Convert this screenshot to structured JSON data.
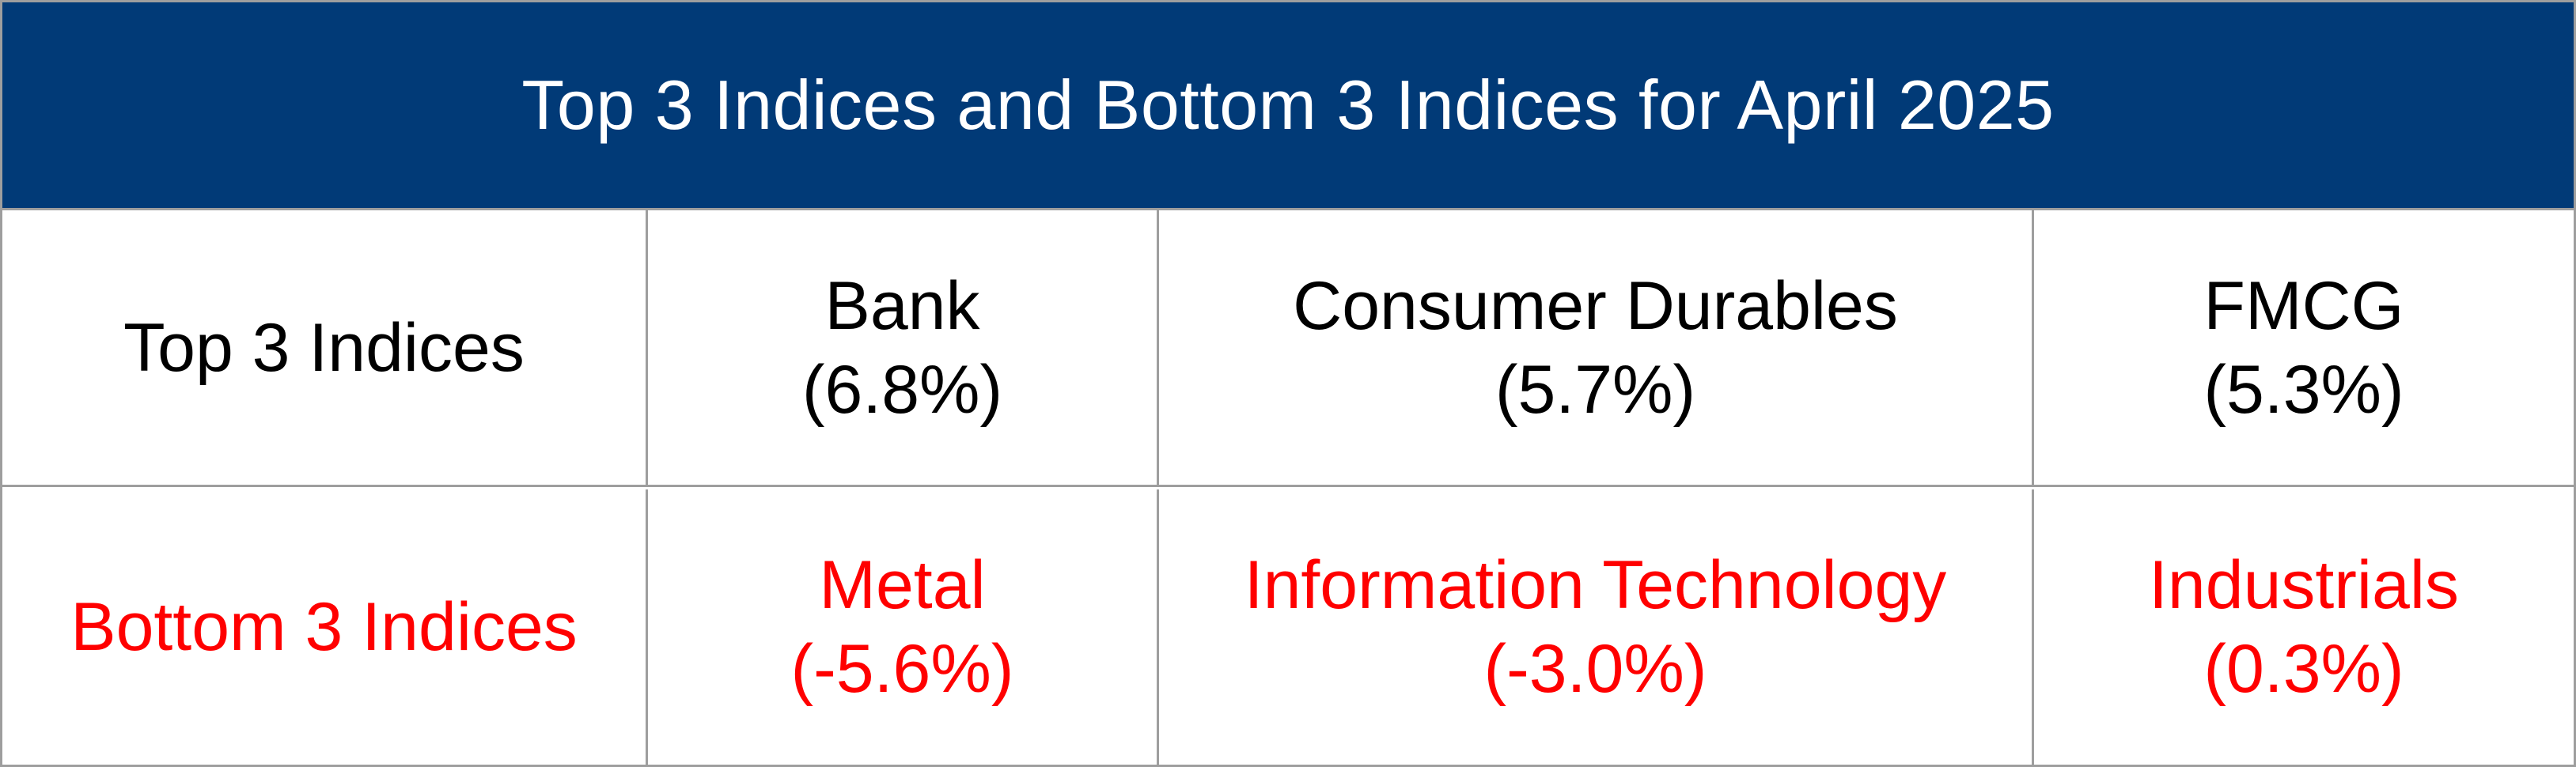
{
  "title": "Top 3 Indices and Bottom 3 Indices for April 2025",
  "colors": {
    "header_bg": "#013a77",
    "header_text": "#ffffff",
    "top_text": "#000000",
    "bottom_text": "#ff0000",
    "border": "#9e9e9e"
  },
  "top": {
    "label": "Top 3 Indices",
    "items": [
      {
        "name": "Bank",
        "value": "(6.8%)"
      },
      {
        "name": "Consumer Durables",
        "value": "(5.7%)"
      },
      {
        "name": "FMCG",
        "value": "(5.3%)"
      }
    ]
  },
  "bottom": {
    "label": "Bottom 3 Indices",
    "items": [
      {
        "name": "Metal",
        "value": "(-5.6%)"
      },
      {
        "name": "Information Technology",
        "value": "(-3.0%)"
      },
      {
        "name": "Industrials",
        "value": "(0.3%)"
      }
    ]
  }
}
